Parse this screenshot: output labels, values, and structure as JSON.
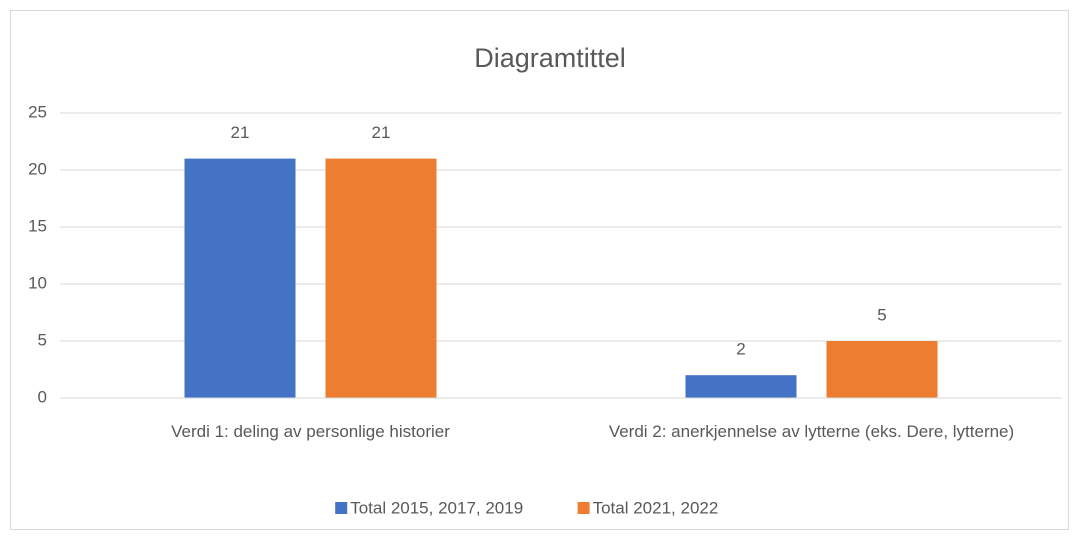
{
  "chart_data": {
    "type": "bar",
    "title": "Diagramtittel",
    "categories": [
      "Verdi 1: deling av personlige historier",
      "Verdi 2: anerkjennelse av lytterne (eks. Dere, lytterne)"
    ],
    "series": [
      {
        "name": "Total 2015, 2017, 2019",
        "color": "#4472c4",
        "values": [
          21,
          2
        ]
      },
      {
        "name": "Total 2021, 2022",
        "color": "#ed7d31",
        "values": [
          21,
          5
        ]
      }
    ],
    "ylim": [
      0,
      25
    ],
    "yticks": [
      0,
      5,
      10,
      15,
      20,
      25
    ],
    "grid": true,
    "legend": "bottom"
  }
}
